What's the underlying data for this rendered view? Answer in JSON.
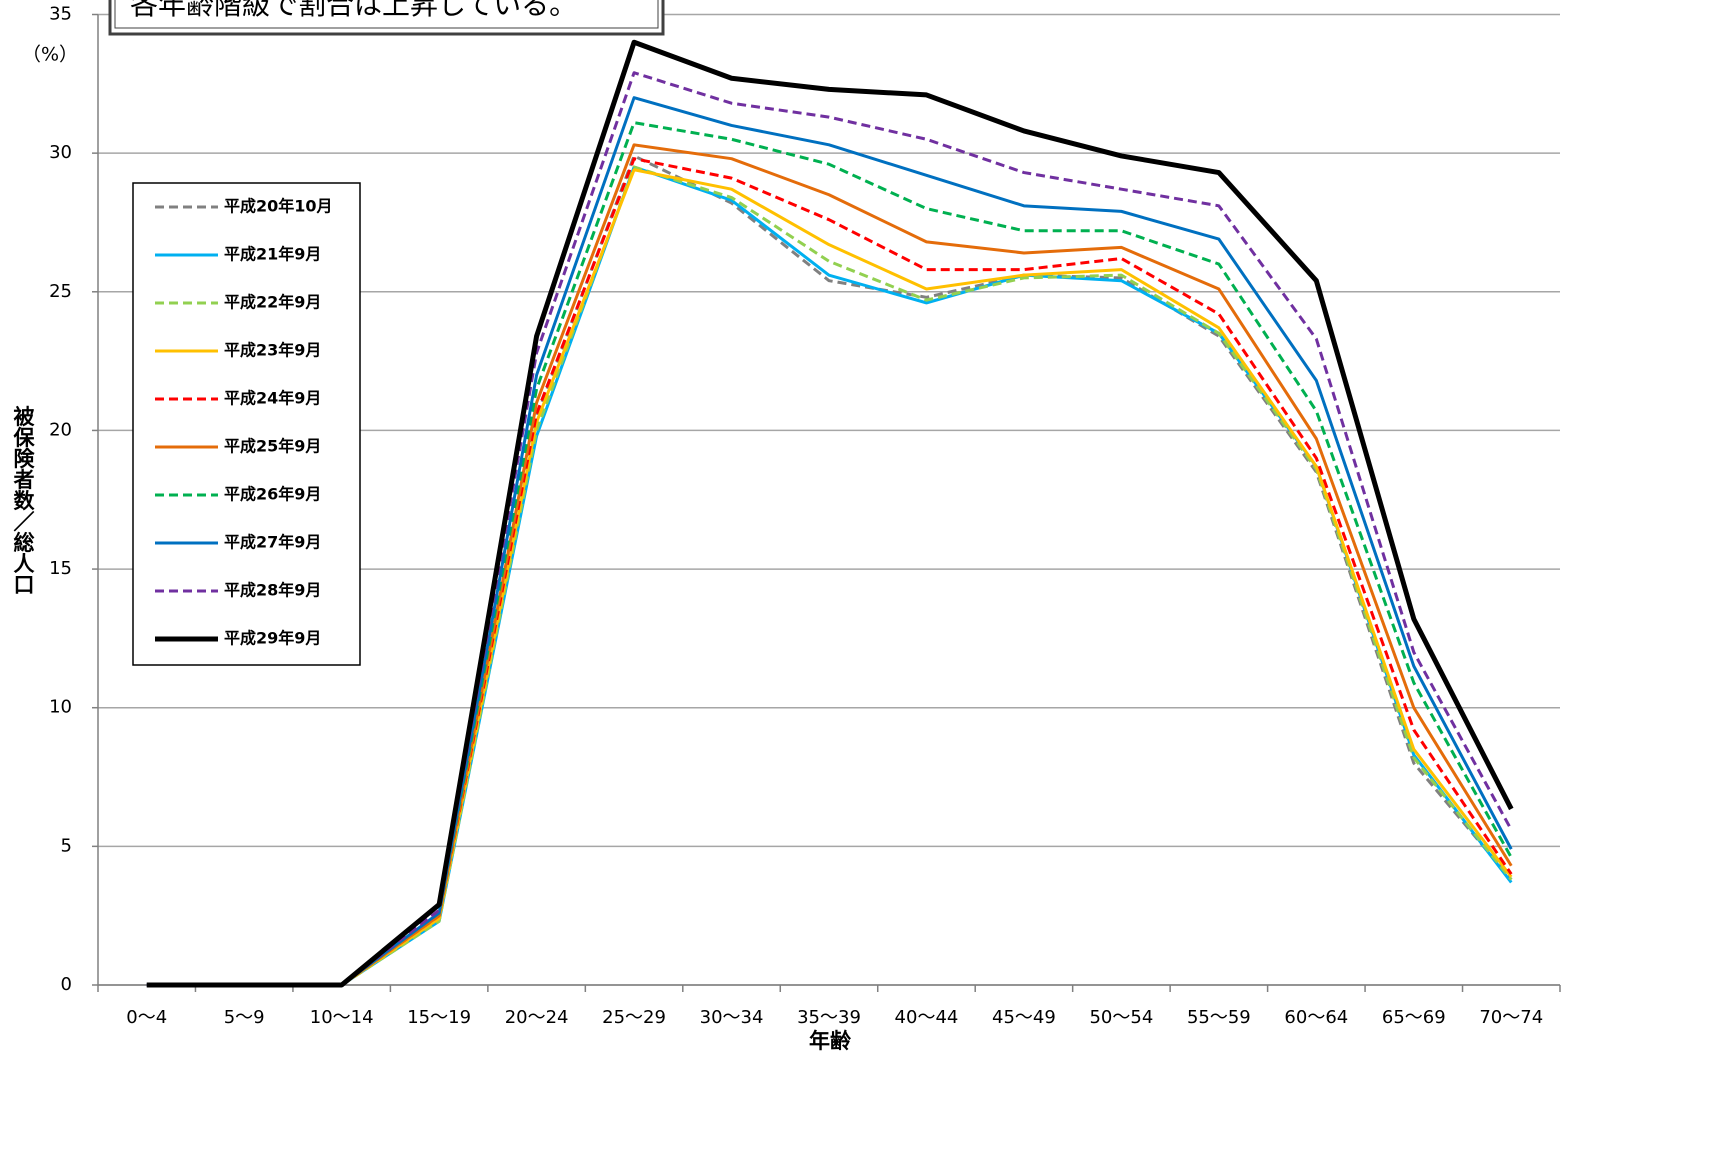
{
  "chart_data": {
    "type": "line",
    "annotation": "各年齢階級で割合は上昇している。",
    "y_unit": "（%）",
    "ylabel": "被保険者数／総人口",
    "xlabel": "年齢",
    "categories": [
      "0～4",
      "5～9",
      "10～14",
      "15～19",
      "20～24",
      "25～29",
      "30～34",
      "35～39",
      "40～44",
      "45～49",
      "50～54",
      "55～59",
      "60～64",
      "65～69",
      "70～74"
    ],
    "ylim": [
      0,
      35
    ],
    "yticks": [
      0,
      5,
      10,
      15,
      20,
      25,
      30,
      35
    ],
    "grid": true,
    "legend": "upper left",
    "series": [
      {
        "name": "平成20年10月",
        "color": "#808080",
        "dashed": true,
        "values": [
          0,
          0,
          0,
          2.4,
          20.5,
          29.9,
          28.2,
          25.4,
          24.8,
          25.6,
          25.5,
          23.4,
          18.5,
          8.0,
          3.8
        ]
      },
      {
        "name": "平成21年9月",
        "color": "#00b0f0",
        "dashed": false,
        "values": [
          0,
          0,
          0,
          2.3,
          19.8,
          29.5,
          28.3,
          25.6,
          24.6,
          25.6,
          25.4,
          23.5,
          18.7,
          8.3,
          3.7
        ]
      },
      {
        "name": "平成22年9月",
        "color": "#92d050",
        "dashed": true,
        "values": [
          0,
          0,
          0,
          2.3,
          20.0,
          29.5,
          28.4,
          26.1,
          24.7,
          25.5,
          25.6,
          23.5,
          18.6,
          8.2,
          3.8
        ]
      },
      {
        "name": "平成23年9月",
        "color": "#ffc000",
        "dashed": false,
        "values": [
          0,
          0,
          0,
          2.4,
          20.3,
          29.4,
          28.7,
          26.7,
          25.1,
          25.6,
          25.8,
          23.7,
          18.7,
          8.5,
          3.9
        ]
      },
      {
        "name": "平成24年9月",
        "color": "#ff0000",
        "dashed": true,
        "values": [
          0,
          0,
          0,
          2.5,
          20.6,
          29.8,
          29.1,
          27.6,
          25.8,
          25.8,
          26.2,
          24.2,
          19.0,
          9.2,
          4.0
        ]
      },
      {
        "name": "平成25年9月",
        "color": "#e46c0a",
        "dashed": false,
        "values": [
          0,
          0,
          0,
          2.5,
          21.0,
          30.3,
          29.8,
          28.5,
          26.8,
          26.4,
          26.6,
          25.1,
          19.7,
          10.0,
          4.3
        ]
      },
      {
        "name": "平成26年9月",
        "color": "#00b050",
        "dashed": true,
        "values": [
          0,
          0,
          0,
          2.6,
          21.5,
          31.1,
          30.5,
          29.6,
          28.0,
          27.2,
          27.2,
          26.0,
          20.7,
          10.9,
          4.6
        ]
      },
      {
        "name": "平成27年9月",
        "color": "#0070c0",
        "dashed": false,
        "values": [
          0,
          0,
          0,
          2.6,
          22.0,
          32.0,
          31.0,
          30.3,
          29.2,
          28.1,
          27.9,
          26.9,
          21.8,
          11.5,
          4.9
        ]
      },
      {
        "name": "平成28年9月",
        "color": "#7030a0",
        "dashed": true,
        "values": [
          0,
          0,
          0,
          2.7,
          22.8,
          32.9,
          31.8,
          31.3,
          30.5,
          29.3,
          28.7,
          28.1,
          23.3,
          12.0,
          5.6
        ]
      },
      {
        "name": "平成29年9月",
        "color": "#000000",
        "dashed": false,
        "width": 5,
        "values": [
          0,
          0,
          0,
          2.9,
          23.4,
          34.0,
          32.7,
          32.3,
          32.1,
          30.8,
          29.9,
          29.3,
          25.4,
          13.2,
          6.35
        ]
      }
    ]
  }
}
